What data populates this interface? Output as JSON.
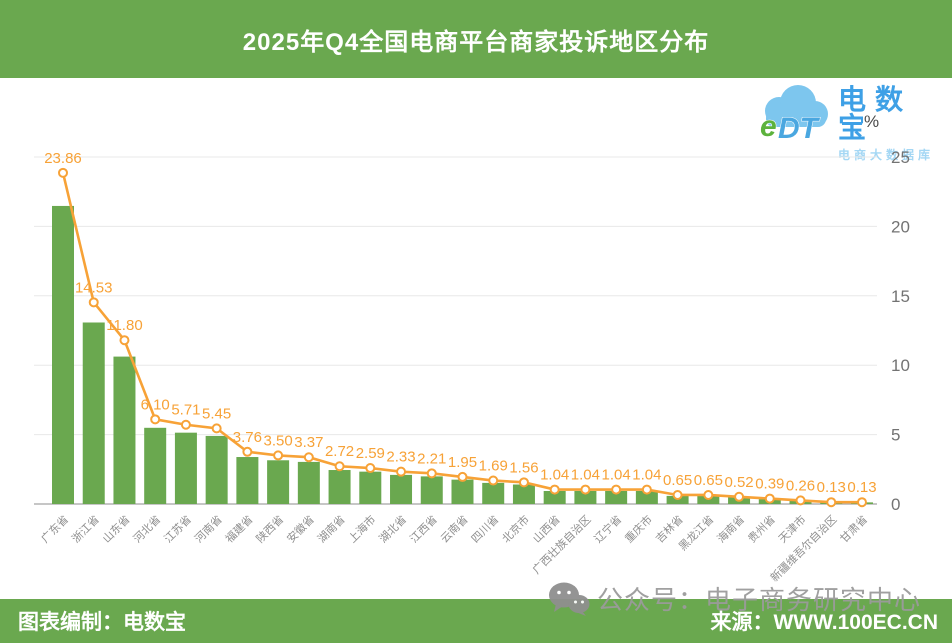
{
  "header": {
    "title": "2025年Q4全国电商平台商家投诉地区分布"
  },
  "logo": {
    "cloud_text": "eDT",
    "brand": "电数宝",
    "subtitle": "电商大数据库",
    "brand_color": "#3ea0e6",
    "cloud_color": "#7dc6ee"
  },
  "chart_data": {
    "type": "bar",
    "title": "2025年Q4全国电商平台商家投诉地区分布",
    "categories": [
      "广东省",
      "浙江省",
      "山东省",
      "河北省",
      "江苏省",
      "河南省",
      "福建省",
      "陕西省",
      "安徽省",
      "湖南省",
      "上海市",
      "湖北省",
      "江西省",
      "云南省",
      "四川省",
      "北京市",
      "山西省",
      "广西壮族自治区",
      "辽宁省",
      "重庆市",
      "吉林省",
      "黑龙江省",
      "海南省",
      "贵州省",
      "天津市",
      "新疆维吾尔自治区",
      "甘肃省"
    ],
    "values": [
      23.86,
      14.53,
      11.8,
      6.1,
      5.71,
      5.45,
      3.76,
      3.5,
      3.37,
      2.72,
      2.59,
      2.33,
      2.21,
      1.95,
      1.69,
      1.56,
      1.04,
      1.04,
      1.04,
      1.04,
      0.65,
      0.65,
      0.52,
      0.39,
      0.26,
      0.13,
      0.13
    ],
    "overlay_line": true,
    "xlabel": "",
    "ylabel": "%",
    "ylim": [
      0,
      25
    ],
    "yticks": [
      0,
      5,
      10,
      15,
      20,
      25
    ],
    "grid": "horizontal",
    "legend": "none",
    "bar_color": "#6aa84f",
    "line_color": "#f7a237",
    "label_color": "#f7a237"
  },
  "axis": {
    "unit": "%"
  },
  "watermark": {
    "icon": "wechat",
    "text": "公众号：电子商务研究中心"
  },
  "footer": {
    "left": "图表编制：电数宝",
    "right": "来源：WWW.100EC.CN"
  }
}
